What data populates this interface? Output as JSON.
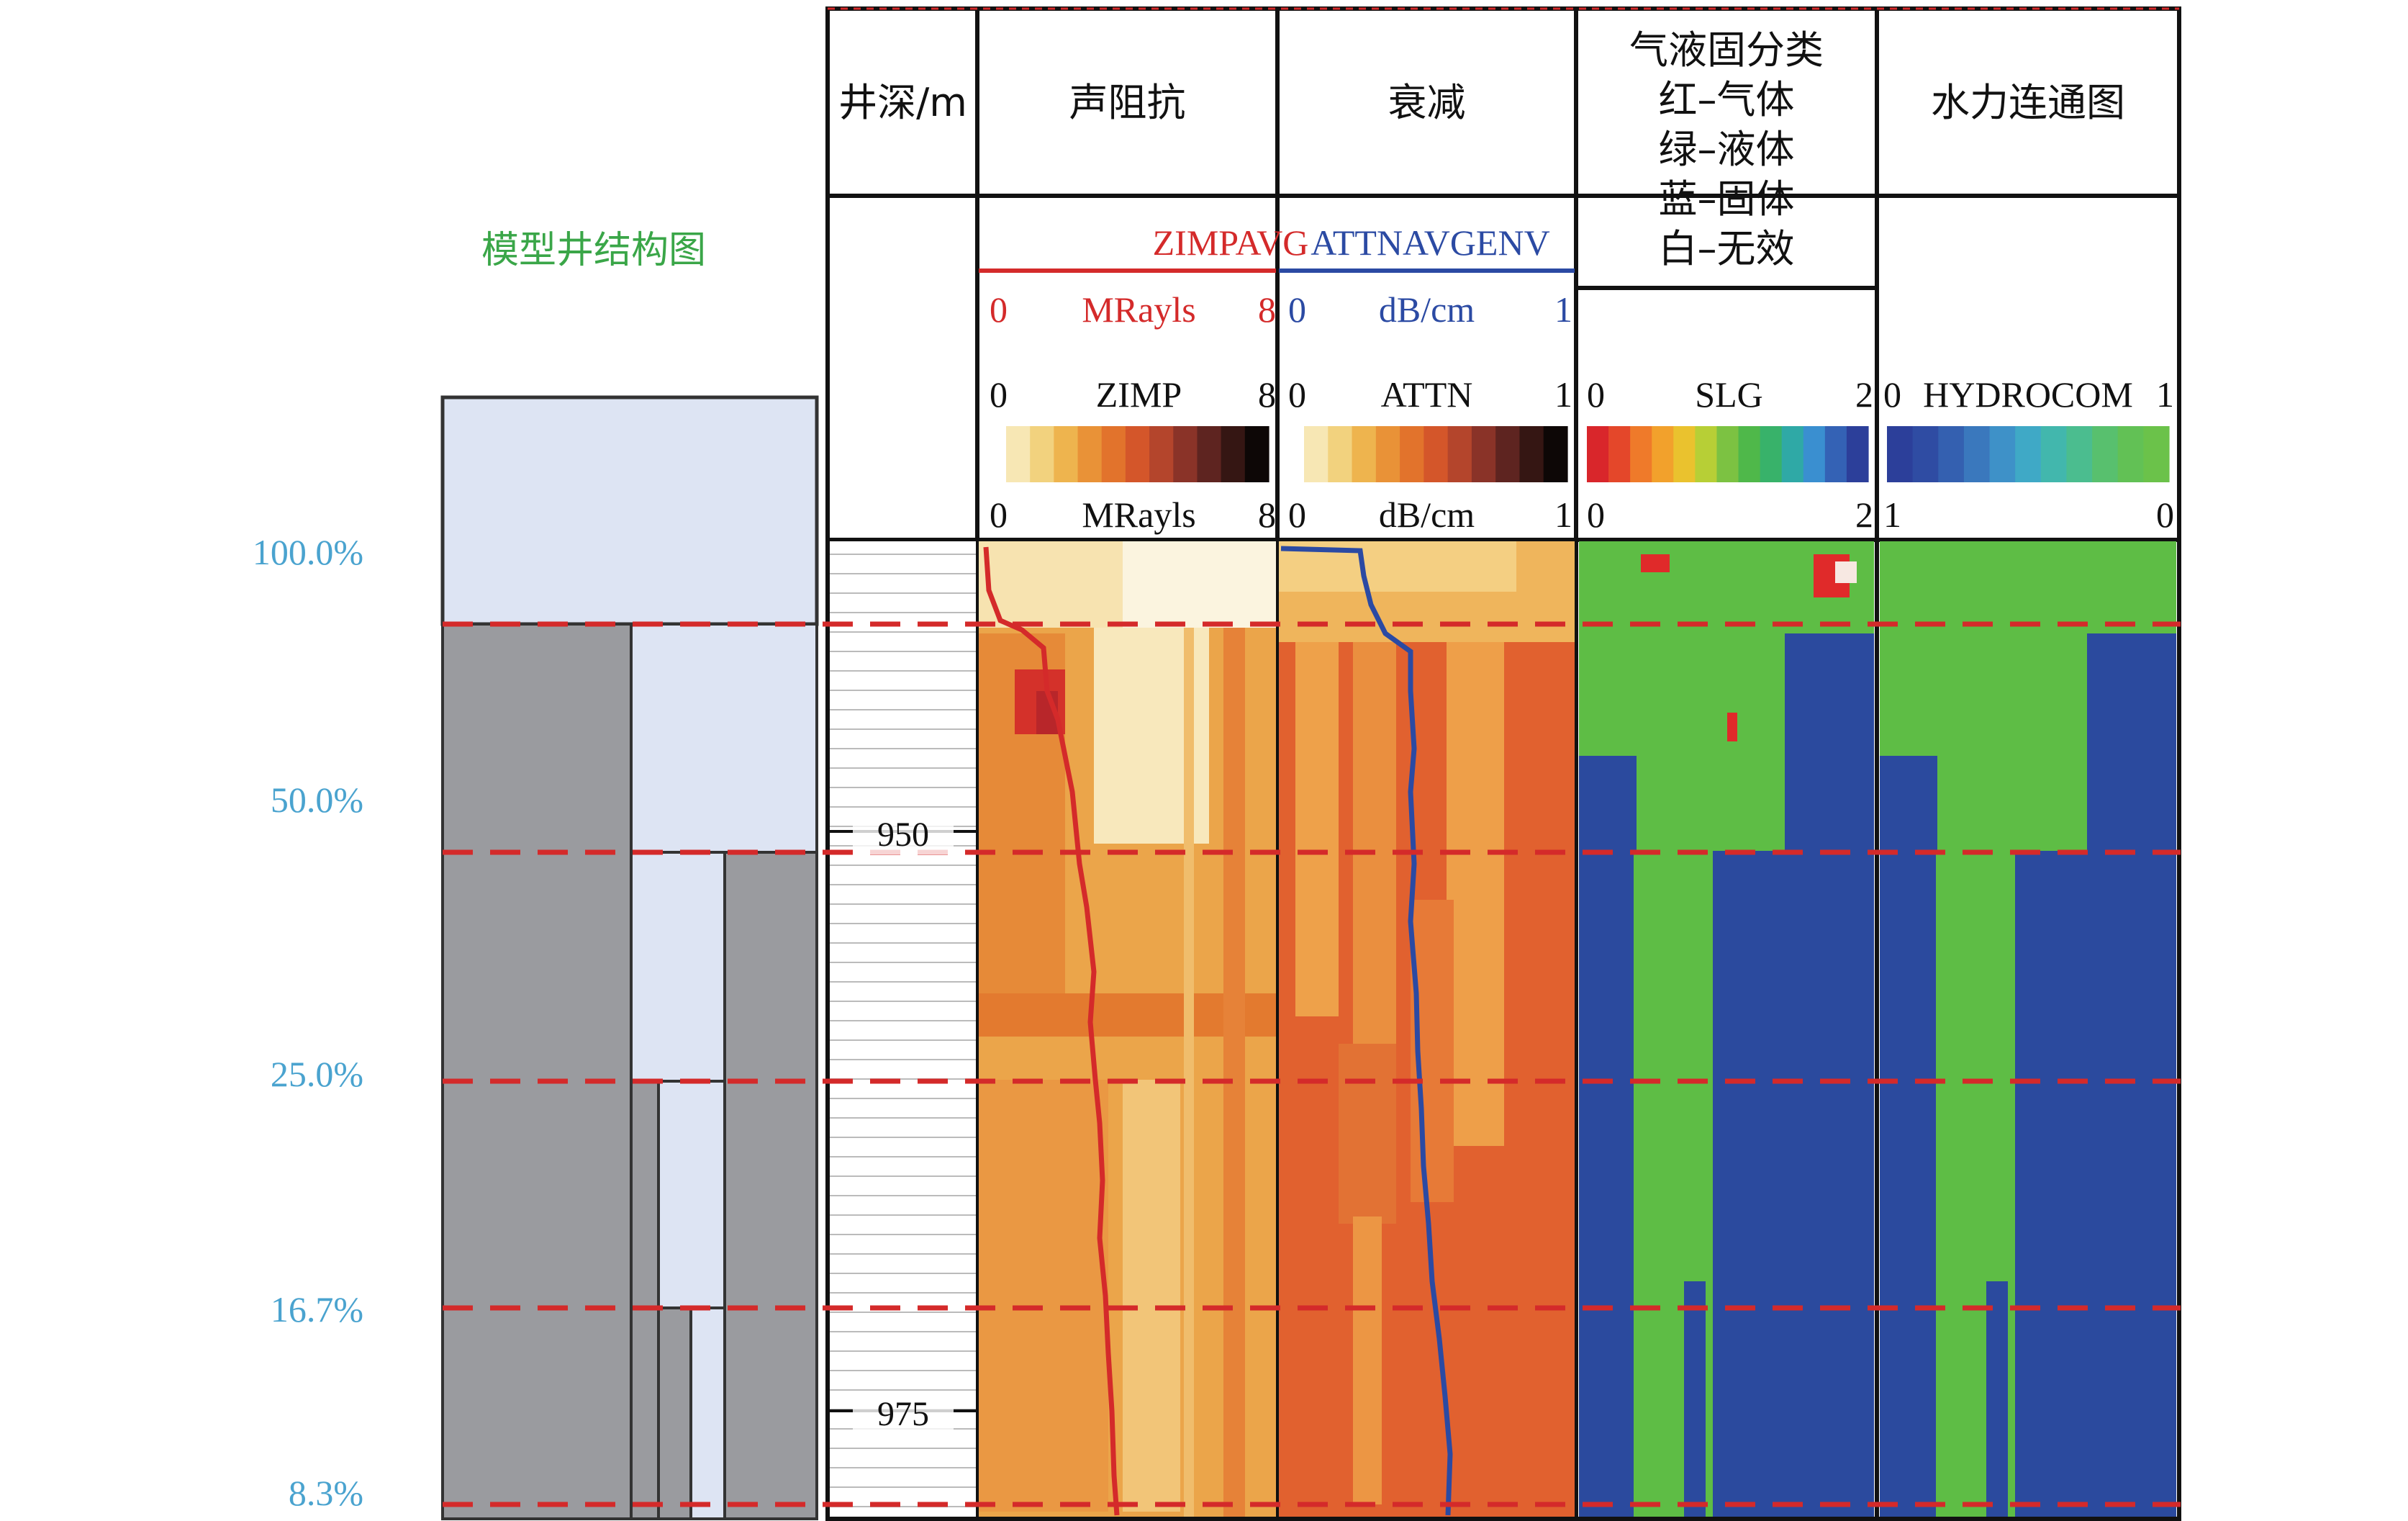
{
  "model": {
    "title": "模型井结构图",
    "percent_labels": [
      "100.0%",
      "50.0%",
      "25.0%",
      "16.7%",
      "8.3%"
    ]
  },
  "columns": {
    "depth": {
      "header": "井深/m",
      "ticks": [
        "950",
        "975"
      ]
    },
    "impedance": {
      "header": "声阻抗",
      "curve_name": "ZIMPAVG",
      "curve_scale": {
        "min": "0",
        "unit": "MRayls",
        "max": "8"
      },
      "image_name": "ZIMP",
      "image_scale": {
        "min": "0",
        "unit": "MRayls",
        "max": "8"
      },
      "palette": [
        "#f7e7b4",
        "#f2d27e",
        "#eeb44e",
        "#e99237",
        "#e2732c",
        "#d4562a",
        "#b4452c",
        "#8a3328",
        "#5e2420",
        "#351613",
        "#0d0706"
      ]
    },
    "attenuation": {
      "header": "衰减",
      "curve_name": "ATTNAVGENV",
      "curve_scale": {
        "min": "0",
        "unit": "dB/cm",
        "max": "1"
      },
      "image_name": "ATTN",
      "image_scale": {
        "min": "0",
        "unit": "dB/cm",
        "max": "1"
      },
      "palette": [
        "#f7e7b4",
        "#f2d27e",
        "#eeb44e",
        "#e99237",
        "#e2732c",
        "#d4562a",
        "#b4452c",
        "#8a3328",
        "#5e2420",
        "#351613",
        "#0d0706"
      ]
    },
    "classification": {
      "header_lines": [
        "气液固分类",
        "红–气体",
        "绿–液体",
        "蓝–固体",
        "白–无效"
      ],
      "image_name": "SLG",
      "top_scale": {
        "min": "0",
        "max": "2"
      },
      "bottom_scale": {
        "min": "0",
        "max": "2"
      },
      "palette": [
        "#d9262b",
        "#e4472a",
        "#ef7a2a",
        "#f2a12c",
        "#eac22e",
        "#b7cf36",
        "#7cc242",
        "#4fb84a",
        "#38b26a",
        "#2fa9a6",
        "#3a8fd0",
        "#3462b5",
        "#2c3f9a"
      ]
    },
    "hydraulic": {
      "header": "水力连通图",
      "image_name": "HYDROCOM",
      "top_scale": {
        "min": "0",
        "max": "1"
      },
      "bottom_scale": {
        "min": "1",
        "max": "0"
      },
      "palette": [
        "#2c3f9a",
        "#2f4ca3",
        "#3460b0",
        "#3a78bd",
        "#3e91c8",
        "#3fa9c6",
        "#42b7ad",
        "#4bbd8f",
        "#58c06e",
        "#62c155",
        "#6bc24a"
      ]
    }
  },
  "colors": {
    "gas": "#e02a2a",
    "liquid": "#5ebd45",
    "solid": "#2b4a9e",
    "casing": "#9a9b9f",
    "bore": "#dde4f3",
    "divider": "#d42a2a",
    "impedance_curve": "#d42a2a",
    "attenuation_curve": "#2b4aa3"
  }
}
